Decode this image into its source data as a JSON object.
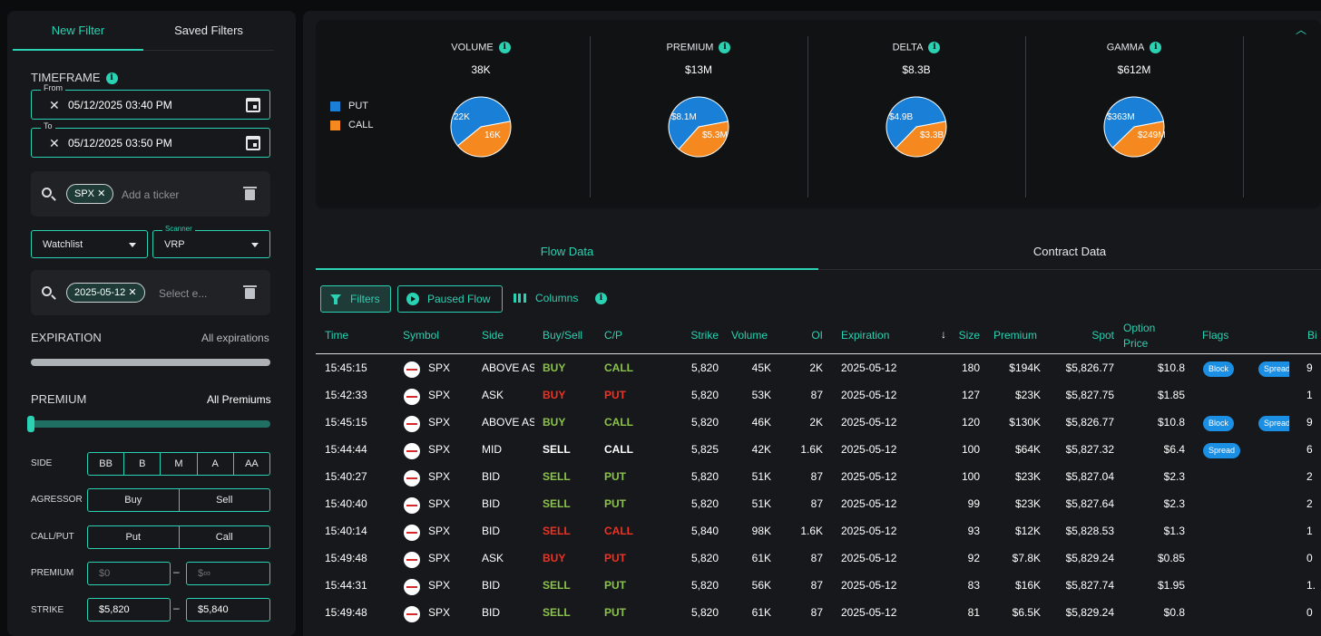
{
  "left": {
    "tabs": [
      "New Filter",
      "Saved Filters"
    ],
    "timeframe_label": "TIMEFRAME",
    "from_label": "From",
    "from_value": "05/12/2025 03:40 PM",
    "to_label": "To",
    "to_value": "05/12/2025 03:50 PM",
    "ticker_chip": "SPX",
    "ticker_placeholder": "Add a ticker",
    "watchlist_label": "Watchlist",
    "scanner_label": "Scanner",
    "scanner_value": "VRP",
    "date_chip": "2025-05-12",
    "date_placeholder": "Select e...",
    "expiration_label": "EXPIRATION",
    "expiration_value": "All expirations",
    "premium_label": "PREMIUM",
    "premium_value": "All Premiums",
    "side_label": "SIDE",
    "side_options": [
      "BB",
      "B",
      "M",
      "A",
      "AA"
    ],
    "agressor_label": "AGRESSOR",
    "agressor_options": [
      "Buy",
      "Sell"
    ],
    "callput_label": "CALL/PUT",
    "callput_options": [
      "Put",
      "Call"
    ],
    "premium_range_label": "PREMIUM",
    "premium_min": "$0",
    "premium_max": "$∞",
    "strike_label": "STRIKE",
    "strike_min": "$5,820",
    "strike_max": "$5,840",
    "dash": "–"
  },
  "stats": {
    "legend": [
      "PUT",
      "CALL"
    ],
    "put_color": "#1a7fd6",
    "call_color": "#f5891f",
    "cards": [
      {
        "title": "VOLUME",
        "value": "38K",
        "put_label": "22K",
        "call_label": "16K",
        "put": 22,
        "call": 16
      },
      {
        "title": "PREMIUM",
        "value": "$13M",
        "put_label": "$8.1M",
        "call_label": "$5.3M",
        "put": 8.1,
        "call": 5.3
      },
      {
        "title": "DELTA",
        "value": "$8.3B",
        "put_label": "$4.9B",
        "call_label": "$3.3B",
        "put": 4.9,
        "call": 3.3
      },
      {
        "title": "GAMMA",
        "value": "$612M",
        "put_label": "$363M",
        "call_label": "$249M",
        "put": 363,
        "call": 249
      }
    ]
  },
  "tabs": [
    "Flow Data",
    "Contract Data"
  ],
  "toolbar": {
    "filters": "Filters",
    "paused": "Paused Flow",
    "columns": "Columns"
  },
  "columns": [
    "Time",
    "Symbol",
    "Side",
    "Buy/Sell",
    "C/P",
    "Strike",
    "Volume",
    "OI",
    "Expiration",
    "Size",
    "Premium",
    "Spot",
    "Option Price",
    "Flags",
    "Bi"
  ],
  "rows": [
    {
      "time": "15:45:15",
      "symbol": "SPX",
      "side": "ABOVE ASK",
      "bs": "BUY",
      "bsc": "g",
      "cp": "CALL",
      "cpc": "g",
      "strike": "5,820",
      "volume": "45K",
      "oi": "2K",
      "exp": "2025-05-12",
      "size": "180",
      "premium": "$194K",
      "spot": "$5,826.77",
      "price": "$10.8",
      "flags": [
        "Block",
        "Spread"
      ],
      "bid": "9"
    },
    {
      "time": "15:42:33",
      "symbol": "SPX",
      "side": "ASK",
      "bs": "BUY",
      "bsc": "r",
      "cp": "PUT",
      "cpc": "r",
      "strike": "5,820",
      "volume": "53K",
      "oi": "87",
      "exp": "2025-05-12",
      "size": "127",
      "premium": "$23K",
      "spot": "$5,827.75",
      "price": "$1.85",
      "flags": [],
      "bid": "1"
    },
    {
      "time": "15:45:15",
      "symbol": "SPX",
      "side": "ABOVE ASK",
      "bs": "BUY",
      "bsc": "g",
      "cp": "CALL",
      "cpc": "g",
      "strike": "5,820",
      "volume": "46K",
      "oi": "2K",
      "exp": "2025-05-12",
      "size": "120",
      "premium": "$130K",
      "spot": "$5,826.77",
      "price": "$10.8",
      "flags": [
        "Block",
        "Spread"
      ],
      "bid": "9"
    },
    {
      "time": "15:44:44",
      "symbol": "SPX",
      "side": "MID",
      "bs": "SELL",
      "bsc": "w",
      "cp": "CALL",
      "cpc": "w",
      "strike": "5,825",
      "volume": "42K",
      "oi": "1.6K",
      "exp": "2025-05-12",
      "size": "100",
      "premium": "$64K",
      "spot": "$5,827.32",
      "price": "$6.4",
      "flags": [
        "Spread"
      ],
      "bid": "6"
    },
    {
      "time": "15:40:27",
      "symbol": "SPX",
      "side": "BID",
      "bs": "SELL",
      "bsc": "g",
      "cp": "PUT",
      "cpc": "g",
      "strike": "5,820",
      "volume": "51K",
      "oi": "87",
      "exp": "2025-05-12",
      "size": "100",
      "premium": "$23K",
      "spot": "$5,827.04",
      "price": "$2.3",
      "flags": [],
      "bid": "2"
    },
    {
      "time": "15:40:40",
      "symbol": "SPX",
      "side": "BID",
      "bs": "SELL",
      "bsc": "g",
      "cp": "PUT",
      "cpc": "g",
      "strike": "5,820",
      "volume": "51K",
      "oi": "87",
      "exp": "2025-05-12",
      "size": "99",
      "premium": "$23K",
      "spot": "$5,827.64",
      "price": "$2.3",
      "flags": [],
      "bid": "2"
    },
    {
      "time": "15:40:14",
      "symbol": "SPX",
      "side": "BID",
      "bs": "SELL",
      "bsc": "r",
      "cp": "CALL",
      "cpc": "r",
      "strike": "5,840",
      "volume": "98K",
      "oi": "1.6K",
      "exp": "2025-05-12",
      "size": "93",
      "premium": "$12K",
      "spot": "$5,828.53",
      "price": "$1.3",
      "flags": [],
      "bid": "1"
    },
    {
      "time": "15:49:48",
      "symbol": "SPX",
      "side": "ASK",
      "bs": "BUY",
      "bsc": "r",
      "cp": "PUT",
      "cpc": "r",
      "strike": "5,820",
      "volume": "61K",
      "oi": "87",
      "exp": "2025-05-12",
      "size": "92",
      "premium": "$7.8K",
      "spot": "$5,829.24",
      "price": "$0.85",
      "flags": [],
      "bid": "0"
    },
    {
      "time": "15:44:31",
      "symbol": "SPX",
      "side": "BID",
      "bs": "SELL",
      "bsc": "g",
      "cp": "PUT",
      "cpc": "g",
      "strike": "5,820",
      "volume": "56K",
      "oi": "87",
      "exp": "2025-05-12",
      "size": "83",
      "premium": "$16K",
      "spot": "$5,827.74",
      "price": "$1.95",
      "flags": [],
      "bid": "1."
    },
    {
      "time": "15:49:48",
      "symbol": "SPX",
      "side": "BID",
      "bs": "SELL",
      "bsc": "g",
      "cp": "PUT",
      "cpc": "g",
      "strike": "5,820",
      "volume": "61K",
      "oi": "87",
      "exp": "2025-05-12",
      "size": "81",
      "premium": "$6.5K",
      "spot": "$5,829.24",
      "price": "$0.8",
      "flags": [],
      "bid": "0"
    }
  ]
}
